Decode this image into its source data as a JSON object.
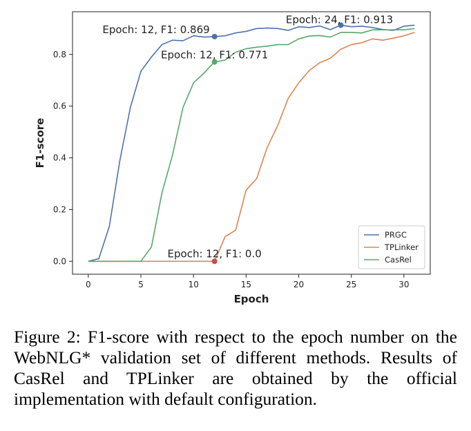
{
  "chart_data": {
    "type": "line",
    "xlabel": "Epoch",
    "ylabel": "F1-score",
    "xlim": [
      -1.5,
      32.5
    ],
    "ylim": [
      -0.05,
      0.965
    ],
    "xticks": [
      0,
      5,
      10,
      15,
      20,
      25,
      30
    ],
    "yticks": [
      0.0,
      0.2,
      0.4,
      0.6,
      0.8
    ],
    "ytick_labels": [
      "0.0",
      "0.2",
      "0.4",
      "0.6",
      "0.8"
    ],
    "grid": false,
    "legend_position": "lower-right",
    "x": [
      0,
      1,
      2,
      3,
      4,
      5,
      6,
      7,
      8,
      9,
      10,
      11,
      12,
      13,
      14,
      15,
      16,
      17,
      18,
      19,
      20,
      21,
      22,
      23,
      24,
      25,
      26,
      27,
      28,
      29,
      30,
      31
    ],
    "series": [
      {
        "name": "PRGC",
        "color": "#4c72b0",
        "values": [
          0.0,
          0.01,
          0.135,
          0.39,
          0.595,
          0.735,
          0.79,
          0.838,
          0.855,
          0.853,
          0.872,
          0.867,
          0.869,
          0.872,
          0.883,
          0.889,
          0.9,
          0.902,
          0.9,
          0.893,
          0.907,
          0.904,
          0.91,
          0.896,
          0.913,
          0.907,
          0.909,
          0.904,
          0.896,
          0.893,
          0.909,
          0.913
        ]
      },
      {
        "name": "TPLinker",
        "color": "#dd8452",
        "values": [
          0.0,
          0.0,
          0.0,
          0.0,
          0.0,
          0.0,
          0.0,
          0.0,
          0.0,
          0.0,
          0.0,
          0.0,
          0.0,
          0.095,
          0.12,
          0.275,
          0.32,
          0.44,
          0.525,
          0.63,
          0.69,
          0.738,
          0.768,
          0.785,
          0.82,
          0.838,
          0.845,
          0.86,
          0.855,
          0.863,
          0.872,
          0.885
        ]
      },
      {
        "name": "CasRel",
        "color": "#55a868",
        "values": [
          0.0,
          0.0,
          0.0,
          0.0,
          0.0,
          0.0,
          0.055,
          0.265,
          0.41,
          0.595,
          0.69,
          0.728,
          0.771,
          0.778,
          0.808,
          0.822,
          0.828,
          0.832,
          0.838,
          0.838,
          0.86,
          0.871,
          0.873,
          0.867,
          0.885,
          0.885,
          0.883,
          0.895,
          0.895,
          0.895,
          0.895,
          0.9
        ]
      }
    ],
    "markers": [
      {
        "x": 12,
        "y": 0.869,
        "color": "#4c72b0"
      },
      {
        "x": 24,
        "y": 0.913,
        "color": "#4c72b0"
      },
      {
        "x": 12,
        "y": 0.771,
        "color": "#55a868"
      },
      {
        "x": 12,
        "y": 0.0,
        "color": "#c44e52"
      }
    ],
    "annotations": [
      {
        "text": "Epoch: 12, F1: 0.869",
        "x": 12,
        "y": 0.869,
        "anchor": "end",
        "dx": -7,
        "dy": -5
      },
      {
        "text": "Epoch: 24, F1: 0.913",
        "x": 24,
        "y": 0.913,
        "anchor": "middle",
        "dx": -2,
        "dy": -3
      },
      {
        "text": "Epoch: 12, F1: 0.771",
        "x": 12,
        "y": 0.771,
        "anchor": "middle",
        "dx": 0,
        "dy": -5
      },
      {
        "text": "Epoch: 12, F1: 0.0",
        "x": 12,
        "y": 0.0,
        "anchor": "middle",
        "dx": 0,
        "dy": -6
      }
    ]
  },
  "caption": "Figure 2: F1-score with respect to the epoch number on the WebNLG* validation set of different methods. Results of CasRel and TPLinker are obtained by the official implementation with default configuration."
}
